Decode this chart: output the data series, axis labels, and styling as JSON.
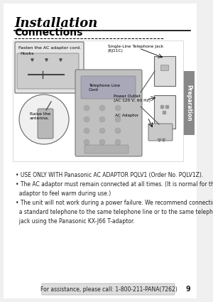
{
  "page_bg": "#f0f0f0",
  "title": "Installation",
  "title_fontsize": 13,
  "title_color": "#000000",
  "section": "Connections",
  "section_fontsize": 10,
  "section_color": "#000000",
  "tab_text": "Preparation",
  "tab_bg": "#888888",
  "tab_text_color": "#ffffff",
  "bullet_lines": [
    "• USE ONLY WITH Panasonic AC ADAPTOR PQLV1 (Order No. PQLV1Z).",
    "• The AC adaptor must remain connected at all times. (It is normal for the",
    "  adaptor to feel warm during use.)",
    "• The unit will not work during a power failure. We recommend connecting",
    "  a standard telephone to the same telephone line or to the same telephone",
    "  jack using the Panasonic KX-J66 T-adaptor."
  ],
  "bullet_fontsize": 5.5,
  "footer_text": "For assistance, please call: 1-800-211-PANA(7262)",
  "footer_fontsize": 5.5,
  "page_num": "9"
}
